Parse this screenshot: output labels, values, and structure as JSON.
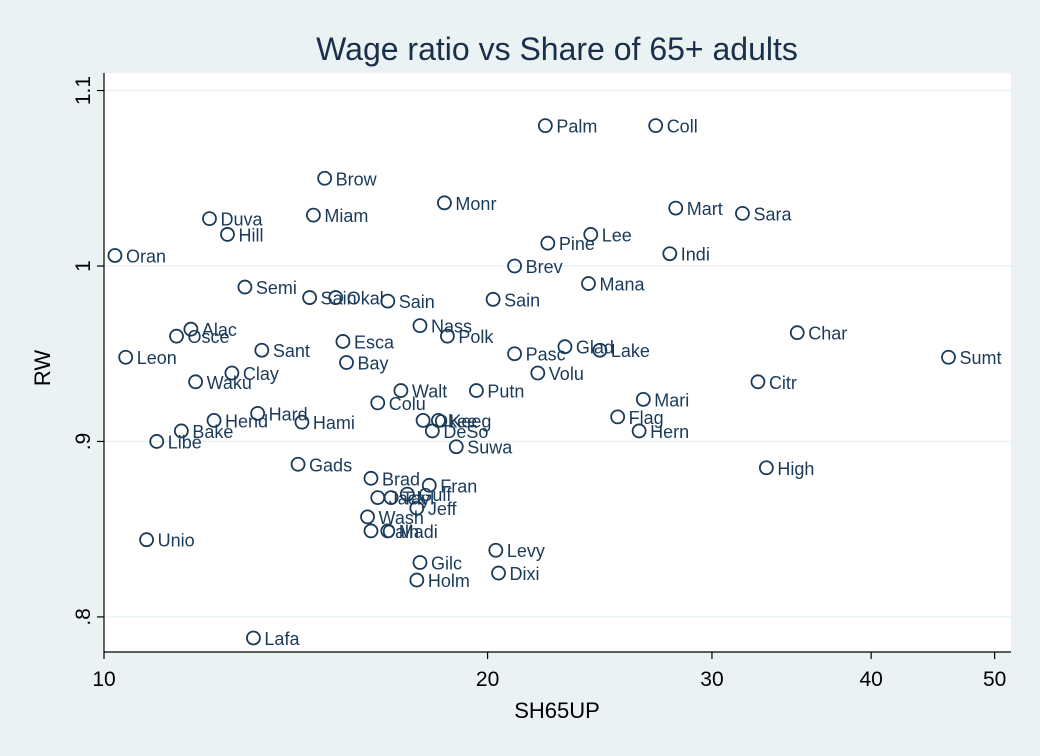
{
  "chart_data": {
    "type": "scatter",
    "title": "Wage ratio vs Share of 65+ adults",
    "xlabel": "SH65UP",
    "ylabel": "RW",
    "x_scale": "log",
    "xlim": [
      10,
      51.5
    ],
    "ylim": [
      0.78,
      1.11
    ],
    "x_ticks": [
      10,
      20,
      30,
      40,
      50
    ],
    "x_tick_labels": [
      "10",
      "20",
      "30",
      "40",
      "50"
    ],
    "y_ticks": [
      0.8,
      0.9,
      1.0,
      1.1
    ],
    "y_tick_labels": [
      ".8",
      ".9",
      "1",
      "1.1"
    ],
    "grid": true,
    "colors": {
      "background": "#eaf2f3",
      "plot_area": "#ffffff",
      "marker": "#1a3a5a",
      "grid": "#eaf2f3"
    },
    "points": [
      {
        "label": "Palm",
        "x": 22.2,
        "y": 1.08
      },
      {
        "label": "Coll",
        "x": 27.1,
        "y": 1.08
      },
      {
        "label": "Brow",
        "x": 14.9,
        "y": 1.05
      },
      {
        "label": "Monr",
        "x": 18.5,
        "y": 1.036
      },
      {
        "label": "Mart",
        "x": 28.1,
        "y": 1.033
      },
      {
        "label": "Sara",
        "x": 31.7,
        "y": 1.03
      },
      {
        "label": "Miam",
        "x": 14.6,
        "y": 1.029
      },
      {
        "label": "Duva",
        "x": 12.1,
        "y": 1.027
      },
      {
        "label": "Hill",
        "x": 12.5,
        "y": 1.018
      },
      {
        "label": "Lee",
        "x": 24.1,
        "y": 1.018
      },
      {
        "label": "Pine",
        "x": 22.3,
        "y": 1.013
      },
      {
        "label": "Indi",
        "x": 27.8,
        "y": 1.007
      },
      {
        "label": "Oran",
        "x": 10.2,
        "y": 1.006
      },
      {
        "label": "Brev",
        "x": 21.0,
        "y": 1.0
      },
      {
        "label": "Mana",
        "x": 24.0,
        "y": 0.99
      },
      {
        "label": "Semi",
        "x": 12.9,
        "y": 0.988
      },
      {
        "label": "Okal",
        "x": 15.2,
        "y": 0.982
      },
      {
        "label": "Sain",
        "x": 14.5,
        "y": 0.982
      },
      {
        "label": "Sain",
        "x": 16.7,
        "y": 0.98
      },
      {
        "label": "Sain",
        "x": 20.2,
        "y": 0.981
      },
      {
        "label": "Nass",
        "x": 17.7,
        "y": 0.966
      },
      {
        "label": "Alac",
        "x": 11.7,
        "y": 0.964
      },
      {
        "label": "Char",
        "x": 35.0,
        "y": 0.962
      },
      {
        "label": "Polk",
        "x": 18.6,
        "y": 0.96
      },
      {
        "label": "Osce",
        "x": 11.4,
        "y": 0.96
      },
      {
        "label": "Esca",
        "x": 15.4,
        "y": 0.957
      },
      {
        "label": "Glad",
        "x": 23.0,
        "y": 0.954
      },
      {
        "label": "Sant",
        "x": 13.3,
        "y": 0.952
      },
      {
        "label": "Lake",
        "x": 24.5,
        "y": 0.952
      },
      {
        "label": "Pasc",
        "x": 21.0,
        "y": 0.95
      },
      {
        "label": "Leon",
        "x": 10.4,
        "y": 0.948
      },
      {
        "label": "Sumt",
        "x": 46.0,
        "y": 0.948
      },
      {
        "label": "Bay",
        "x": 15.5,
        "y": 0.945
      },
      {
        "label": "Clay",
        "x": 12.6,
        "y": 0.939
      },
      {
        "label": "Volu",
        "x": 21.9,
        "y": 0.939
      },
      {
        "label": "Waku",
        "x": 11.8,
        "y": 0.934
      },
      {
        "label": "Citr",
        "x": 32.6,
        "y": 0.934
      },
      {
        "label": "Walt",
        "x": 17.1,
        "y": 0.929
      },
      {
        "label": "Putn",
        "x": 19.6,
        "y": 0.929
      },
      {
        "label": "Mari",
        "x": 26.5,
        "y": 0.924
      },
      {
        "label": "Colu",
        "x": 16.4,
        "y": 0.922
      },
      {
        "label": "Hard",
        "x": 13.2,
        "y": 0.916
      },
      {
        "label": "Flag",
        "x": 25.3,
        "y": 0.914
      },
      {
        "label": "Hend",
        "x": 12.2,
        "y": 0.912
      },
      {
        "label": "Okee",
        "x": 17.8,
        "y": 0.912
      },
      {
        "label": "Keeg",
        "x": 18.3,
        "y": 0.912
      },
      {
        "label": "Hami",
        "x": 14.3,
        "y": 0.911
      },
      {
        "label": "Bake",
        "x": 11.5,
        "y": 0.906
      },
      {
        "label": "DeSo",
        "x": 18.1,
        "y": 0.906
      },
      {
        "label": "Hern",
        "x": 26.3,
        "y": 0.906
      },
      {
        "label": "Libe",
        "x": 11.0,
        "y": 0.9
      },
      {
        "label": "Suwa",
        "x": 18.9,
        "y": 0.897
      },
      {
        "label": "Gads",
        "x": 14.2,
        "y": 0.887
      },
      {
        "label": "High",
        "x": 33.1,
        "y": 0.885
      },
      {
        "label": "Brad",
        "x": 16.2,
        "y": 0.879
      },
      {
        "label": "Fran",
        "x": 18.0,
        "y": 0.875
      },
      {
        "label": "Gulf",
        "x": 17.3,
        "y": 0.87
      },
      {
        "label": "Jack",
        "x": 16.4,
        "y": 0.868
      },
      {
        "label": "Tayl",
        "x": 16.8,
        "y": 0.868
      },
      {
        "label": "Jeff",
        "x": 17.6,
        "y": 0.862
      },
      {
        "label": "Wash",
        "x": 16.1,
        "y": 0.857
      },
      {
        "label": "Calh",
        "x": 16.2,
        "y": 0.849
      },
      {
        "label": "Madi",
        "x": 16.7,
        "y": 0.849
      },
      {
        "label": "Unio",
        "x": 10.8,
        "y": 0.844
      },
      {
        "label": "Levy",
        "x": 20.3,
        "y": 0.838
      },
      {
        "label": "Gilc",
        "x": 17.7,
        "y": 0.831
      },
      {
        "label": "Dixi",
        "x": 20.4,
        "y": 0.825
      },
      {
        "label": "Holm",
        "x": 17.6,
        "y": 0.821
      },
      {
        "label": "Lafa",
        "x": 13.1,
        "y": 0.788
      }
    ]
  }
}
